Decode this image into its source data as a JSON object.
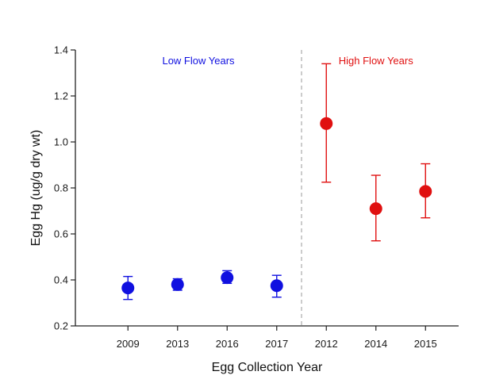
{
  "chart_data": {
    "type": "scatter",
    "xlabel": "Egg Collection Year",
    "ylabel": "Egg Hg (ug/g dry wt)",
    "ylim": [
      0.2,
      1.4
    ],
    "yticks": [
      "0.2",
      "0.4",
      "0.6",
      "0.8",
      "1.0",
      "1.2",
      "1.4"
    ],
    "categories": [
      "2009",
      "2013",
      "2016",
      "2017",
      "2012",
      "2014",
      "2015"
    ],
    "series": [
      {
        "color": "#1010e0",
        "points": [
          {
            "x": "2009",
            "y": 0.365,
            "err_low": 0.315,
            "err_high": 0.415
          },
          {
            "x": "2013",
            "y": 0.38,
            "err_low": 0.355,
            "err_high": 0.405
          },
          {
            "x": "2016",
            "y": 0.41,
            "err_low": 0.385,
            "err_high": 0.44
          },
          {
            "x": "2017",
            "y": 0.375,
            "err_low": 0.325,
            "err_high": 0.42
          }
        ]
      },
      {
        "color": "#e01010",
        "points": [
          {
            "x": "2012",
            "y": 1.08,
            "err_low": 0.825,
            "err_high": 1.34
          },
          {
            "x": "2014",
            "y": 0.71,
            "err_low": 0.57,
            "err_high": 0.855
          },
          {
            "x": "2015",
            "y": 0.785,
            "err_low": 0.67,
            "err_high": 0.905
          }
        ]
      }
    ],
    "annotations": [
      {
        "text": "Low Flow Years",
        "color": "#1010e0"
      },
      {
        "text": "High Flow Years",
        "color": "#e01010"
      }
    ],
    "divider": {
      "between": [
        "2017",
        "2012"
      ],
      "style": "dashed",
      "color": "#b0b0b0"
    },
    "grid": false
  }
}
